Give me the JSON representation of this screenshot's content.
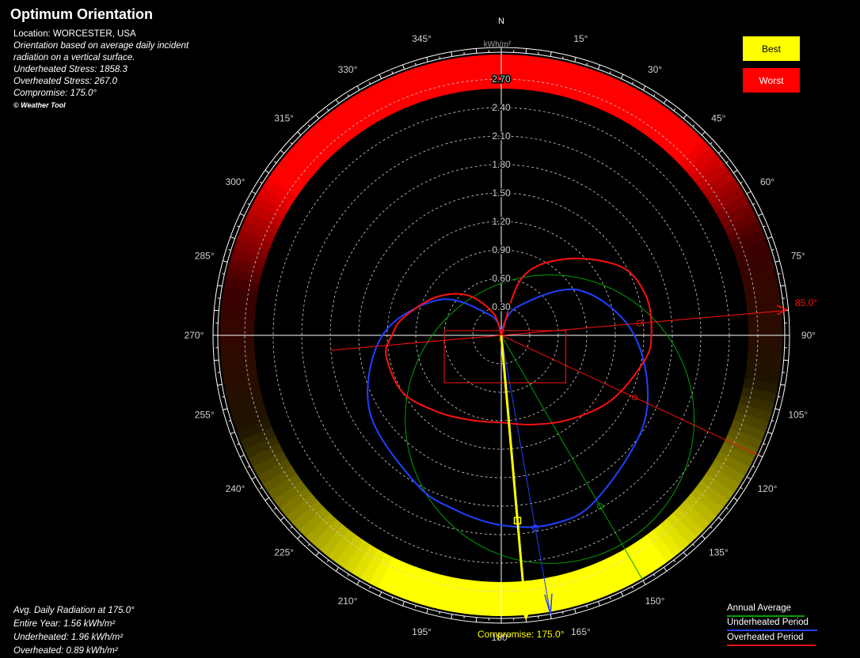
{
  "header": {
    "title": "Optimum Orientation",
    "location": "Location: WORCESTER, USA",
    "desc1": "Orientation based on average daily incident",
    "desc2": "radiation on a vertical surface.",
    "underheated_stress": "Underheated Stress: 1858.3",
    "overheated_stress": "Overheated Stress: 267.0",
    "compromise": "Compromise: 175.0°",
    "copyright": "© Weather Tool"
  },
  "legend_boxes": {
    "best": "Best",
    "worst": "Worst",
    "best_color": "#ffff00",
    "worst_color": "#ff0000"
  },
  "bottom_info": {
    "line1": "Avg. Daily Radiation at 175.0°",
    "line2": "Entire Year: 1.56 kWh/m²",
    "line3": "Underheated: 1.96 kWh/m²",
    "line4": "Overheated: 0.89 kWh/m²"
  },
  "series_legend": {
    "annual": "Annual Average",
    "underheated": "Underheated Period",
    "overheated": "Overheated Period",
    "annual_color": "#00a000",
    "underheated_color": "#2040ff",
    "overheated_color": "#ff1010"
  },
  "chart_data": {
    "type": "polar",
    "unit_label": "kWh/m²",
    "north_label": "N",
    "radial_ticks": [
      "0.30",
      "0.60",
      "0.90",
      "1.20",
      "1.50",
      "1.80",
      "2.10",
      "2.40",
      "2.70"
    ],
    "radial_values": [
      0.3,
      0.6,
      0.9,
      1.2,
      1.5,
      1.8,
      2.1,
      2.4,
      2.7
    ],
    "r_max": 3.0,
    "angle_labels": [
      {
        "deg": 15,
        "text": "15°"
      },
      {
        "deg": 30,
        "text": "30°"
      },
      {
        "deg": 45,
        "text": "45°"
      },
      {
        "deg": 60,
        "text": "60°"
      },
      {
        "deg": 75,
        "text": "75°"
      },
      {
        "deg": 90,
        "text": "90°"
      },
      {
        "deg": 105,
        "text": "105°"
      },
      {
        "deg": 120,
        "text": "120°"
      },
      {
        "deg": 135,
        "text": "135°"
      },
      {
        "deg": 150,
        "text": "150°"
      },
      {
        "deg": 165,
        "text": "165°"
      },
      {
        "deg": 180,
        "text": "180°"
      },
      {
        "deg": 195,
        "text": "195°"
      },
      {
        "deg": 210,
        "text": "210°"
      },
      {
        "deg": 225,
        "text": "225°"
      },
      {
        "deg": 240,
        "text": "240°"
      },
      {
        "deg": 255,
        "text": "255°"
      },
      {
        "deg": 270,
        "text": "270°"
      },
      {
        "deg": 285,
        "text": "285°"
      },
      {
        "deg": 300,
        "text": "300°"
      },
      {
        "deg": 315,
        "text": "315°"
      },
      {
        "deg": 330,
        "text": "330°"
      },
      {
        "deg": 345,
        "text": "345°"
      }
    ],
    "overheated_best_label": "85.0°",
    "compromise_label": "Compromise: 175.0°",
    "compromise_deg": 175,
    "underheated_best_deg": 170,
    "annual_best_deg": 150,
    "overheated_best_deg": 85,
    "overheated_worst_deg": 265,
    "overheated_aux_deg": 115,
    "annual_circle": {
      "center_deg": 150,
      "center_r": 1.02,
      "radius": 1.52
    },
    "underheated_curve": {
      "deg": [
        0,
        30,
        60,
        90,
        120,
        150,
        165,
        180,
        195,
        210,
        240,
        270,
        300,
        330,
        355
      ],
      "r": [
        0.05,
        0.35,
        0.95,
        1.4,
        1.75,
        2.0,
        2.06,
        2.0,
        1.9,
        1.8,
        1.6,
        1.25,
        0.75,
        0.25,
        0.05
      ]
    },
    "overheated_curve": {
      "deg": [
        0,
        20,
        40,
        60,
        75,
        90,
        100,
        120,
        140,
        160,
        180,
        200,
        220,
        240,
        260,
        270,
        280,
        300,
        320,
        340,
        360
      ],
      "r": [
        0.0,
        0.65,
        1.05,
        1.45,
        1.58,
        1.58,
        1.53,
        1.35,
        1.15,
        1.0,
        0.92,
        0.95,
        1.05,
        1.2,
        1.23,
        1.15,
        1.05,
        0.8,
        0.55,
        0.25,
        0.0
      ]
    },
    "rectangle": {
      "x0": -0.6,
      "x1": 0.68,
      "y0": -0.5,
      "y1": 0.05
    },
    "ring_shading": "best-to-worst color band around the outside of the plot"
  }
}
